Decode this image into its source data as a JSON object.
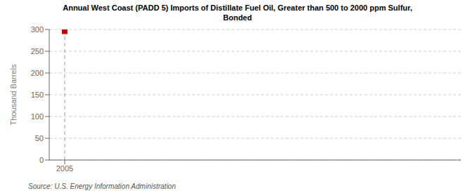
{
  "chart_data": {
    "type": "scatter",
    "title": "Annual West Coast (PADD 5) Imports of Distillate Fuel Oil, Greater than 500 to 2000 ppm Sulfur,\nBonded",
    "ylabel": "Thousand Barrels",
    "source": "Source: U.S. Energy Information Administration",
    "x": [
      2005
    ],
    "values": [
      296
    ],
    "color": "#cc0000",
    "marker": "square",
    "xlim": [
      2004.3,
      2023
    ],
    "ylim": [
      0,
      300
    ],
    "xticks": [
      2005
    ],
    "yticks": [
      0,
      50,
      100,
      150,
      200,
      250,
      300
    ],
    "grid": true,
    "vlines": [
      2005
    ]
  }
}
